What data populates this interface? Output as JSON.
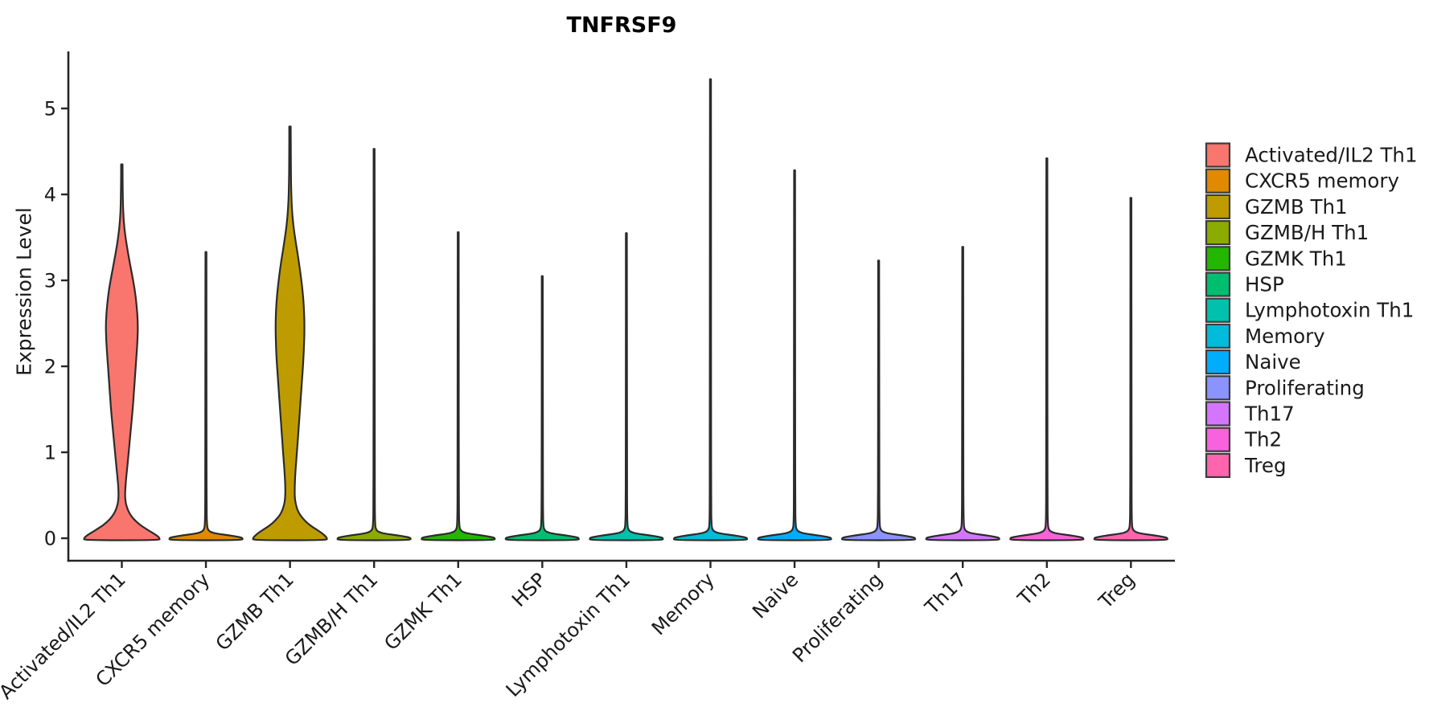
{
  "chart_data": {
    "type": "violin",
    "title": "TNFRSF9",
    "xlabel": "",
    "ylabel": "Expression Level",
    "ylim": [
      0,
      5.66
    ],
    "yticks": [
      0,
      1,
      2,
      3,
      4,
      5
    ],
    "grid": false,
    "legend_position": "right",
    "categories": [
      "Activated/IL2 Th1",
      "CXCR5 memory",
      "GZMB Th1",
      "GZMB/H Th1",
      "GZMK Th1",
      "HSP",
      "Lymphotoxin Th1",
      "Memory",
      "Naive",
      "Proliferating",
      "Th17",
      "Th2",
      "Treg"
    ],
    "series": [
      {
        "name": "Activated/IL2 Th1",
        "color": "#F8766D",
        "max_expression": 4.35,
        "shape": "bulged",
        "outline": [
          [
            4.35,
            0.9
          ],
          [
            4.1,
            1.0
          ],
          [
            3.9,
            1.3
          ],
          [
            3.7,
            2.2
          ],
          [
            3.5,
            4.5
          ],
          [
            3.3,
            8
          ],
          [
            3.1,
            12
          ],
          [
            2.9,
            16
          ],
          [
            2.7,
            18.5
          ],
          [
            2.5,
            20
          ],
          [
            2.3,
            19.5
          ],
          [
            2.1,
            18
          ],
          [
            1.9,
            16.5
          ],
          [
            1.7,
            15
          ],
          [
            1.5,
            13.5
          ],
          [
            1.3,
            11.5
          ],
          [
            1.1,
            9.5
          ],
          [
            0.95,
            8
          ],
          [
            0.8,
            6.5
          ],
          [
            0.68,
            5.2
          ],
          [
            0.58,
            4.3
          ],
          [
            0.5,
            4.0
          ],
          [
            0.42,
            4.6
          ],
          [
            0.35,
            6.5
          ],
          [
            0.28,
            10
          ],
          [
            0.22,
            15
          ],
          [
            0.16,
            22
          ],
          [
            0.11,
            30
          ],
          [
            0.07,
            37
          ],
          [
            0.04,
            42
          ],
          [
            0.02,
            45
          ],
          [
            0,
            47
          ]
        ]
      },
      {
        "name": "CXCR5 memory",
        "color": "#E18A00",
        "max_expression": 3.33,
        "shape": "flat"
      },
      {
        "name": "GZMB Th1",
        "color": "#BE9C00",
        "max_expression": 4.79,
        "shape": "bulged",
        "outline": [
          [
            4.79,
            0.9
          ],
          [
            4.4,
            1.0
          ],
          [
            4.1,
            1.3
          ],
          [
            3.85,
            2.2
          ],
          [
            3.65,
            4
          ],
          [
            3.45,
            7
          ],
          [
            3.25,
            10.5
          ],
          [
            3.05,
            13.5
          ],
          [
            2.85,
            16
          ],
          [
            2.65,
            17.5
          ],
          [
            2.45,
            18
          ],
          [
            2.25,
            17.5
          ],
          [
            2.05,
            16.5
          ],
          [
            1.85,
            15
          ],
          [
            1.65,
            13.5
          ],
          [
            1.45,
            12
          ],
          [
            1.25,
            10.5
          ],
          [
            1.05,
            9
          ],
          [
            0.9,
            7.8
          ],
          [
            0.78,
            6.8
          ],
          [
            0.68,
            6.2
          ],
          [
            0.6,
            5.9
          ],
          [
            0.52,
            5.8
          ],
          [
            0.45,
            6.2
          ],
          [
            0.38,
            7.5
          ],
          [
            0.3,
            10.5
          ],
          [
            0.24,
            15
          ],
          [
            0.18,
            21
          ],
          [
            0.13,
            28
          ],
          [
            0.09,
            35
          ],
          [
            0.05,
            41
          ],
          [
            0.02,
            44.5
          ],
          [
            0,
            46
          ]
        ]
      },
      {
        "name": "GZMB/H Th1",
        "color": "#8CAB00",
        "max_expression": 4.53,
        "shape": "flat"
      },
      {
        "name": "GZMK Th1",
        "color": "#24B700",
        "max_expression": 3.56,
        "shape": "flat"
      },
      {
        "name": "HSP",
        "color": "#00BE70",
        "max_expression": 3.05,
        "shape": "flat"
      },
      {
        "name": "Lymphotoxin Th1",
        "color": "#00C1AB",
        "max_expression": 3.55,
        "shape": "flat"
      },
      {
        "name": "Memory",
        "color": "#00BBDA",
        "max_expression": 5.34,
        "shape": "flat"
      },
      {
        "name": "Naive",
        "color": "#00ACFC",
        "max_expression": 4.28,
        "shape": "flat"
      },
      {
        "name": "Proliferating",
        "color": "#8B93FF",
        "max_expression": 3.23,
        "shape": "flat"
      },
      {
        "name": "Th17",
        "color": "#D575FE",
        "max_expression": 3.39,
        "shape": "flat"
      },
      {
        "name": "Th2",
        "color": "#F962DD",
        "max_expression": 4.42,
        "shape": "flat"
      },
      {
        "name": "Treg",
        "color": "#FF65AC",
        "max_expression": 3.96,
        "shape": "flat"
      }
    ]
  },
  "style": {
    "background": "#ffffff",
    "axis_color": "#262626",
    "text_color": "#1a1a1a",
    "violin_outline_color": "#2b2b2b",
    "legend_swatch_border": "#3c3c3c"
  }
}
